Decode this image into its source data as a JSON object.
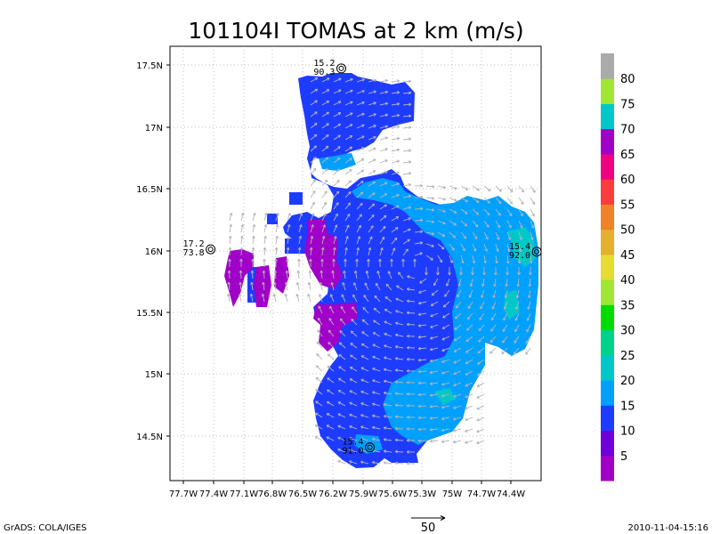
{
  "chart_data": {
    "type": "heatmap",
    "title": "101104I TOMAS at 2 km (m/s)",
    "x_ticks": [
      "77.7W",
      "77.4W",
      "77.1W",
      "76.8W",
      "76.5W",
      "76.2W",
      "75.9W",
      "75.6W",
      "75.3W",
      "75W",
      "74.7W",
      "74.4W"
    ],
    "y_ticks": [
      "17.5N",
      "17N",
      "16.5N",
      "16N",
      "15.5N",
      "15N",
      "14.5N"
    ],
    "xlim": [
      -77.75,
      -74.37
    ],
    "ylim": [
      14.04,
      17.57
    ],
    "grid": true,
    "colorbar": {
      "levels": [
        "5",
        "10",
        "15",
        "20",
        "25",
        "30",
        "35",
        "40",
        "45",
        "50",
        "55",
        "60",
        "65",
        "70",
        "75",
        "80"
      ],
      "colors": [
        "#a000c8",
        "#6e00dc",
        "#1e3cff",
        "#00a0ff",
        "#00c8c8",
        "#00d28c",
        "#00dc00",
        "#a0e632",
        "#e6dc32",
        "#e6af2d",
        "#f08228",
        "#fa3c3c",
        "#f00082",
        "#a000c8",
        "#00c8c8",
        "#a0e632",
        "#aaaaaa"
      ]
    },
    "speed_regions": [
      {
        "speed_class": "10-15",
        "color": "#1e3cff",
        "description": "main storm area"
      },
      {
        "speed_class": "15-20",
        "color": "#00a0ff",
        "description": "eastern/southern band"
      },
      {
        "speed_class": "20-25",
        "color": "#00c8c8",
        "description": "small patches"
      },
      {
        "speed_class": "0-5",
        "color": "#a000c8",
        "description": "western fragments"
      }
    ],
    "vector_reference": {
      "value": "50"
    },
    "stations": [
      {
        "lines": [
          "15.2",
          "90.3"
        ],
        "lon": -76.19,
        "lat": 17.39
      },
      {
        "lines": [
          "17.2",
          "73.8"
        ],
        "lon": -77.38,
        "lat": 15.92
      },
      {
        "lines": [
          "15.4",
          "92.0"
        ],
        "lon": -74.41,
        "lat": 15.9
      },
      {
        "lines": [
          "15.4",
          "91.0"
        ],
        "lon": -75.93,
        "lat": 14.31
      }
    ]
  },
  "footer": {
    "left": "GrADS: COLA/IGES",
    "right": "2010-11-04-15:16"
  }
}
